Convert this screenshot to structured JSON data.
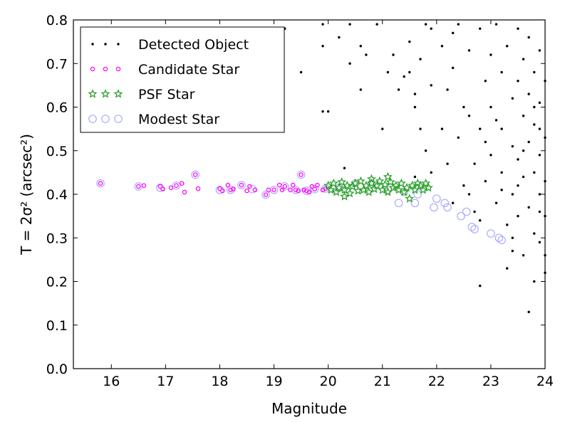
{
  "chart_data": {
    "type": "scatter",
    "xlabel": "Magnitude",
    "ylabel": "T = 2σ² (arcsec²)",
    "xlim": [
      15.3,
      24
    ],
    "ylim": [
      0,
      0.8
    ],
    "xticks": [
      "16",
      "17",
      "18",
      "19",
      "20",
      "21",
      "22",
      "23",
      "24"
    ],
    "yticks": [
      "0.0",
      "0.1",
      "0.2",
      "0.3",
      "0.4",
      "0.5",
      "0.6",
      "0.7",
      "0.8"
    ],
    "grid": false,
    "legend_position": "top-left",
    "series": [
      {
        "name": "Detected Object",
        "marker": "dot",
        "color": "#000000",
        "points": [
          [
            19.2,
            0.78
          ],
          [
            19.9,
            0.79
          ],
          [
            19.9,
            0.74
          ],
          [
            19.5,
            0.68
          ],
          [
            20.2,
            0.76
          ],
          [
            20.4,
            0.79
          ],
          [
            20.7,
            0.72
          ],
          [
            20.9,
            0.79
          ],
          [
            20.6,
            0.74
          ],
          [
            21.2,
            0.72
          ],
          [
            21.5,
            0.75
          ],
          [
            20.4,
            0.7
          ],
          [
            20.6,
            0.64
          ],
          [
            20.0,
            0.59
          ],
          [
            19.9,
            0.59
          ],
          [
            20.3,
            0.46
          ],
          [
            21.0,
            0.55
          ],
          [
            21.4,
            0.67
          ],
          [
            21.3,
            0.64
          ],
          [
            21.6,
            0.6
          ],
          [
            21.5,
            0.68
          ],
          [
            21.1,
            0.68
          ],
          [
            21.8,
            0.79
          ],
          [
            21.9,
            0.78
          ],
          [
            21.7,
            0.71
          ],
          [
            21.6,
            0.63
          ],
          [
            21.9,
            0.65
          ],
          [
            21.7,
            0.55
          ],
          [
            21.8,
            0.5
          ],
          [
            21.6,
            0.44
          ],
          [
            21.9,
            0.45
          ],
          [
            22.1,
            0.74
          ],
          [
            22.2,
            0.64
          ],
          [
            22.3,
            0.69
          ],
          [
            22.1,
            0.55
          ],
          [
            22.2,
            0.47
          ],
          [
            22.4,
            0.79
          ],
          [
            22.4,
            0.53
          ],
          [
            22.5,
            0.42
          ],
          [
            22.3,
            0.38
          ],
          [
            22.6,
            0.73
          ],
          [
            22.6,
            0.58
          ],
          [
            22.7,
            0.47
          ],
          [
            22.7,
            0.36
          ],
          [
            22.8,
            0.78
          ],
          [
            22.9,
            0.66
          ],
          [
            22.8,
            0.55
          ],
          [
            22.9,
            0.43
          ],
          [
            23.0,
            0.72
          ],
          [
            23.0,
            0.6
          ],
          [
            23.0,
            0.49
          ],
          [
            23.1,
            0.38
          ],
          [
            23.1,
            0.79
          ],
          [
            23.2,
            0.68
          ],
          [
            23.2,
            0.55
          ],
          [
            23.2,
            0.45
          ],
          [
            23.3,
            0.33
          ],
          [
            23.3,
            0.74
          ],
          [
            23.4,
            0.62
          ],
          [
            23.4,
            0.51
          ],
          [
            23.4,
            0.4
          ],
          [
            23.4,
            0.27
          ],
          [
            23.5,
            0.78
          ],
          [
            23.5,
            0.66
          ],
          [
            23.5,
            0.48
          ],
          [
            23.5,
            0.35
          ],
          [
            23.6,
            0.71
          ],
          [
            23.6,
            0.58
          ],
          [
            23.6,
            0.44
          ],
          [
            23.7,
            0.76
          ],
          [
            23.7,
            0.63
          ],
          [
            23.7,
            0.52
          ],
          [
            23.7,
            0.37
          ],
          [
            23.8,
            0.68
          ],
          [
            23.8,
            0.56
          ],
          [
            23.8,
            0.45
          ],
          [
            23.8,
            0.31
          ],
          [
            23.9,
            0.73
          ],
          [
            23.9,
            0.61
          ],
          [
            23.9,
            0.49
          ],
          [
            23.9,
            0.4
          ],
          [
            23.9,
            0.29
          ],
          [
            24.0,
            0.66
          ],
          [
            24.0,
            0.53
          ],
          [
            24.0,
            0.43
          ],
          [
            24.0,
            0.35
          ],
          [
            24.0,
            0.26
          ],
          [
            23.3,
            0.23
          ],
          [
            22.8,
            0.19
          ],
          [
            23.7,
            0.13
          ],
          [
            22.3,
            0.77
          ],
          [
            22.5,
            0.6
          ],
          [
            22.9,
            0.52
          ],
          [
            23.1,
            0.57
          ],
          [
            23.6,
            0.5
          ],
          [
            23.8,
            0.6
          ],
          [
            23.2,
            0.41
          ],
          [
            23.5,
            0.42
          ],
          [
            23.9,
            0.55
          ],
          [
            22.6,
            0.4
          ],
          [
            22.8,
            0.34
          ],
          [
            23.4,
            0.3
          ],
          [
            23.6,
            0.26
          ],
          [
            23.8,
            0.2
          ],
          [
            23.9,
            0.36
          ],
          [
            24.0,
            0.22
          ]
        ]
      },
      {
        "name": "Candidate Star",
        "marker": "small-circle",
        "color": "#ff00ff",
        "points": [
          [
            15.8,
            0.425
          ],
          [
            16.5,
            0.418
          ],
          [
            16.6,
            0.42
          ],
          [
            16.9,
            0.418
          ],
          [
            16.95,
            0.412
          ],
          [
            17.1,
            0.415
          ],
          [
            17.2,
            0.42
          ],
          [
            17.3,
            0.425
          ],
          [
            17.35,
            0.405
          ],
          [
            17.55,
            0.445
          ],
          [
            17.6,
            0.413
          ],
          [
            18.0,
            0.413
          ],
          [
            18.05,
            0.408
          ],
          [
            18.15,
            0.421
          ],
          [
            18.2,
            0.41
          ],
          [
            18.25,
            0.412
          ],
          [
            18.4,
            0.421
          ],
          [
            18.5,
            0.408
          ],
          [
            18.55,
            0.418
          ],
          [
            18.65,
            0.41
          ],
          [
            18.85,
            0.399
          ],
          [
            18.9,
            0.41
          ],
          [
            19.0,
            0.41
          ],
          [
            19.1,
            0.421
          ],
          [
            19.15,
            0.41
          ],
          [
            19.2,
            0.418
          ],
          [
            19.3,
            0.41
          ],
          [
            19.35,
            0.421
          ],
          [
            19.4,
            0.41
          ],
          [
            19.45,
            0.408
          ],
          [
            19.5,
            0.445
          ],
          [
            19.55,
            0.41
          ],
          [
            19.6,
            0.408
          ],
          [
            19.65,
            0.405
          ],
          [
            19.7,
            0.418
          ],
          [
            19.75,
            0.412
          ],
          [
            19.8,
            0.421
          ],
          [
            19.9,
            0.41
          ],
          [
            19.95,
            0.413
          ]
        ]
      },
      {
        "name": "PSF Star",
        "marker": "star",
        "color": "#2ca02c",
        "points": [
          [
            20.0,
            0.42
          ],
          [
            20.05,
            0.41
          ],
          [
            20.1,
            0.425
          ],
          [
            20.15,
            0.405
          ],
          [
            20.2,
            0.415
          ],
          [
            20.25,
            0.428
          ],
          [
            20.3,
            0.41
          ],
          [
            20.35,
            0.42
          ],
          [
            20.4,
            0.402
          ],
          [
            20.45,
            0.418
          ],
          [
            20.5,
            0.425
          ],
          [
            20.55,
            0.408
          ],
          [
            20.6,
            0.43
          ],
          [
            20.65,
            0.41
          ],
          [
            20.7,
            0.42
          ],
          [
            20.75,
            0.405
          ],
          [
            20.8,
            0.425
          ],
          [
            20.85,
            0.412
          ],
          [
            20.9,
            0.42
          ],
          [
            20.95,
            0.43
          ],
          [
            21.0,
            0.41
          ],
          [
            21.05,
            0.422
          ],
          [
            21.1,
            0.405
          ],
          [
            21.15,
            0.428
          ],
          [
            21.2,
            0.415
          ],
          [
            21.25,
            0.42
          ],
          [
            21.3,
            0.41
          ],
          [
            21.35,
            0.425
          ],
          [
            21.4,
            0.405
          ],
          [
            21.45,
            0.415
          ],
          [
            21.5,
            0.39
          ],
          [
            21.55,
            0.42
          ],
          [
            21.6,
            0.41
          ],
          [
            21.65,
            0.425
          ],
          [
            21.7,
            0.42
          ],
          [
            21.75,
            0.41
          ],
          [
            21.8,
            0.425
          ],
          [
            21.85,
            0.415
          ],
          [
            20.3,
            0.395
          ],
          [
            20.8,
            0.435
          ],
          [
            21.1,
            0.44
          ]
        ]
      },
      {
        "name": "Modest Star",
        "marker": "open-circle",
        "color": "#aaaaff",
        "points": [
          [
            15.8,
            0.425
          ],
          [
            16.5,
            0.418
          ],
          [
            16.9,
            0.415
          ],
          [
            17.2,
            0.42
          ],
          [
            17.55,
            0.445
          ],
          [
            18.0,
            0.41
          ],
          [
            18.2,
            0.41
          ],
          [
            18.4,
            0.421
          ],
          [
            18.6,
            0.412
          ],
          [
            18.85,
            0.399
          ],
          [
            19.0,
            0.41
          ],
          [
            19.2,
            0.418
          ],
          [
            19.4,
            0.41
          ],
          [
            19.5,
            0.445
          ],
          [
            19.6,
            0.408
          ],
          [
            19.75,
            0.412
          ],
          [
            19.95,
            0.413
          ],
          [
            20.2,
            0.415
          ],
          [
            20.5,
            0.425
          ],
          [
            20.8,
            0.425
          ],
          [
            21.1,
            0.41
          ],
          [
            21.4,
            0.405
          ],
          [
            21.3,
            0.38
          ],
          [
            21.6,
            0.38
          ],
          [
            21.65,
            0.4
          ],
          [
            21.95,
            0.37
          ],
          [
            22.0,
            0.39
          ],
          [
            22.15,
            0.38
          ],
          [
            22.2,
            0.37
          ],
          [
            22.45,
            0.35
          ],
          [
            22.55,
            0.36
          ],
          [
            22.65,
            0.325
          ],
          [
            22.7,
            0.32
          ],
          [
            23.0,
            0.31
          ],
          [
            23.2,
            0.295
          ],
          [
            23.15,
            0.3
          ]
        ]
      }
    ]
  }
}
